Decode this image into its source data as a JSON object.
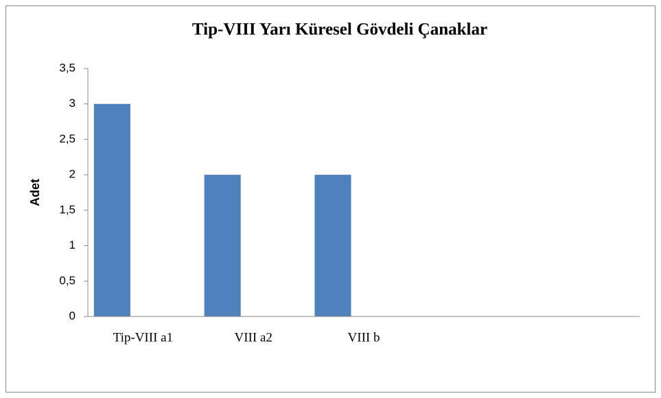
{
  "chart_data": {
    "type": "bar",
    "title": "Tip-VIII Yarı Küresel Gövdeli Çanaklar",
    "y_label": "Adet",
    "categories": [
      "Tip-VIII a1",
      "VIII a2",
      "VIII b",
      null,
      null
    ],
    "values": [
      3,
      2,
      2,
      null,
      null
    ],
    "color": "#4f81bd",
    "ylim": [
      0,
      3.5
    ],
    "yticks": [
      0,
      {
        "value": 0.5,
        "label": "0,5"
      },
      1,
      {
        "value": 1.5,
        "label": "1,5"
      },
      2,
      {
        "value": 2.5,
        "label": "2,5"
      },
      3,
      {
        "value": 3.5,
        "label": "3,5"
      }
    ],
    "grid": false
  }
}
